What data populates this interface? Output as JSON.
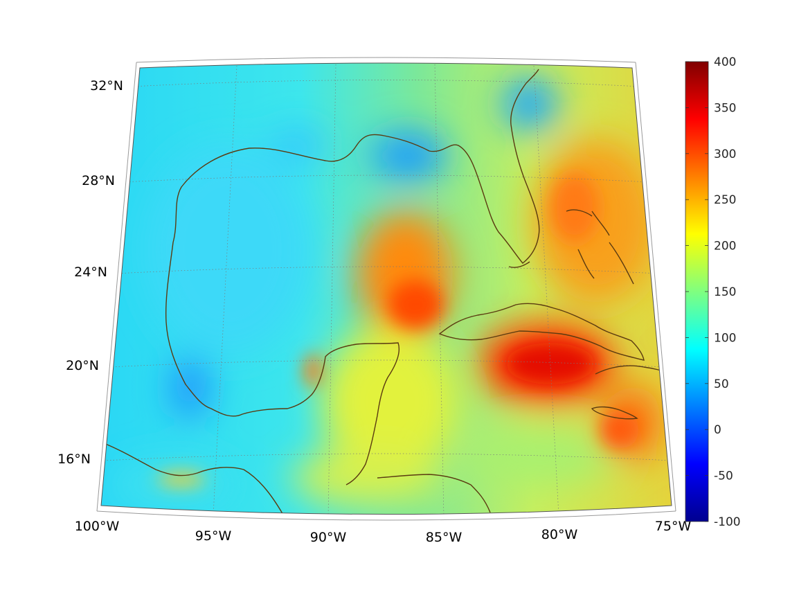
{
  "map": {
    "projection": "conic",
    "region": "Gulf of Mexico and Caribbean",
    "lon_range": [
      -100,
      -75
    ],
    "lat_range": [
      14,
      33
    ],
    "colormap": "jet",
    "grid": true,
    "coastline_color": "#5a3a10",
    "lat_labels": [
      {
        "lat": 32,
        "text": "32°N"
      },
      {
        "lat": 28,
        "text": "28°N"
      },
      {
        "lat": 24,
        "text": "24°N"
      },
      {
        "lat": 20,
        "text": "20°N"
      },
      {
        "lat": 16,
        "text": "16°N"
      }
    ],
    "lon_labels": [
      {
        "lon": -100,
        "text": "100°W"
      },
      {
        "lon": -95,
        "text": "95°W"
      },
      {
        "lon": -90,
        "text": "90°W"
      },
      {
        "lon": -85,
        "text": "85°W"
      },
      {
        "lon": -80,
        "text": "80°W"
      },
      {
        "lon": -75,
        "text": "75°W"
      }
    ],
    "field_features": [
      {
        "name": "central-gulf-high",
        "value": 270
      },
      {
        "name": "cuba-jamaica-high",
        "value": 340
      },
      {
        "name": "florida-bahamas-high",
        "value": 260
      },
      {
        "name": "western-gulf-low",
        "value": 70
      },
      {
        "name": "northern-gulf-low",
        "value": 40
      }
    ]
  },
  "colorbar": {
    "min": -100,
    "max": 400,
    "ticks": [
      "400",
      "350",
      "300",
      "250",
      "200",
      "150",
      "100",
      "50",
      "0",
      "-50",
      "-100"
    ]
  }
}
